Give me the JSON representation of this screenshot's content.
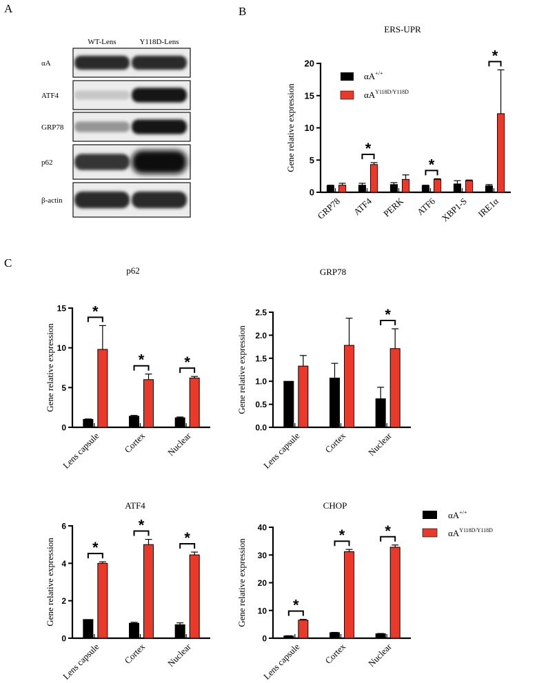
{
  "panels": {
    "a": "A",
    "b": "B",
    "c": "C"
  },
  "blot": {
    "lanes": [
      "WT-Lens",
      "Y118D-Lens"
    ],
    "rows": [
      {
        "label": "αA",
        "wt": 0.85,
        "mut": 0.85
      },
      {
        "label": "ATF4",
        "wt": 0.12,
        "mut": 0.95
      },
      {
        "label": "GRP78",
        "wt": 0.35,
        "mut": 0.95
      },
      {
        "label": "p62",
        "wt": 0.8,
        "mut": 1.0
      },
      {
        "label": "β-actin",
        "wt": 0.85,
        "mut": 0.85
      }
    ]
  },
  "legend": {
    "wt_base": "αA",
    "wt_sup": "+/+",
    "mut_base": "αA",
    "mut_sup": "Y118D/Y118D",
    "colors": {
      "wt": "#000000",
      "mut": "#e8392a"
    }
  },
  "sig_symbol": "*",
  "chart_data": [
    {
      "id": "ers-upr",
      "type": "bar",
      "title": "ERS-UPR",
      "ylabel": "Gene relative expression",
      "ylim": [
        0,
        20
      ],
      "yticks": [
        0,
        5,
        10,
        15,
        20
      ],
      "categories": [
        "GRP78",
        "ATF4",
        "PERK",
        "ATF6",
        "XBP1-S",
        "IRE1α"
      ],
      "series": [
        {
          "name": "αA +/+",
          "values": [
            1.0,
            1.1,
            1.2,
            1.0,
            1.3,
            1.0
          ],
          "errors": [
            0.1,
            0.3,
            0.3,
            0.1,
            0.5,
            0.2
          ]
        },
        {
          "name": "αA Y118D/Y118D",
          "values": [
            1.1,
            4.3,
            2.0,
            2.0,
            1.8,
            12.2
          ],
          "errors": [
            0.3,
            0.3,
            0.7,
            0.1,
            0.1,
            6.8
          ]
        }
      ],
      "significant": [
        false,
        true,
        false,
        true,
        false,
        true
      ]
    },
    {
      "id": "p62",
      "type": "bar",
      "title": "p62",
      "ylabel": "Gene relative expression",
      "ylim": [
        0,
        15
      ],
      "yticks": [
        0,
        5,
        10,
        15
      ],
      "categories": [
        "Lens capsule",
        "Cortex",
        "Nuclear"
      ],
      "series": [
        {
          "name": "αA +/+",
          "values": [
            1.0,
            1.4,
            1.2
          ],
          "errors": [
            0.05,
            0.1,
            0.1
          ]
        },
        {
          "name": "αA Y118D/Y118D",
          "values": [
            9.8,
            6.0,
            6.2
          ],
          "errors": [
            3.0,
            0.7,
            0.2
          ]
        }
      ],
      "significant": [
        true,
        true,
        true
      ]
    },
    {
      "id": "grp78",
      "type": "bar",
      "title": "GRP78",
      "ylabel": "Gene relative expression",
      "ylim": [
        0,
        2.5
      ],
      "yticks": [
        "0.0",
        "0.5",
        "1.0",
        "1.5",
        "2.0",
        "2.5"
      ],
      "categories": [
        "Lens capsule",
        "Cortex",
        "Nuclear"
      ],
      "series": [
        {
          "name": "αA +/+",
          "values": [
            1.0,
            1.07,
            0.62
          ],
          "errors": [
            0.0,
            0.32,
            0.25
          ]
        },
        {
          "name": "αA Y118D/Y118D",
          "values": [
            1.33,
            1.78,
            1.71
          ],
          "errors": [
            0.23,
            0.59,
            0.43
          ]
        }
      ],
      "significant": [
        false,
        false,
        true
      ]
    },
    {
      "id": "atf4",
      "type": "bar",
      "title": "ATF4",
      "ylabel": "Gene relative expression",
      "ylim": [
        0,
        6
      ],
      "yticks": [
        0,
        2,
        4,
        6
      ],
      "categories": [
        "Lens capsule",
        "Cortex",
        "Nuclear"
      ],
      "series": [
        {
          "name": "αA +/+",
          "values": [
            1.0,
            0.8,
            0.72
          ],
          "errors": [
            0.0,
            0.05,
            0.1
          ]
        },
        {
          "name": "αA Y118D/Y118D",
          "values": [
            4.0,
            5.0,
            4.45
          ],
          "errors": [
            0.08,
            0.28,
            0.15
          ]
        }
      ],
      "significant": [
        true,
        true,
        true
      ]
    },
    {
      "id": "chop",
      "type": "bar",
      "title": "CHOP",
      "ylabel": "Gene relative expression",
      "ylim": [
        0,
        40
      ],
      "yticks": [
        0,
        10,
        20,
        30,
        40
      ],
      "categories": [
        "Lens capsule",
        "Cortex",
        "Nuclear"
      ],
      "series": [
        {
          "name": "αA +/+",
          "values": [
            0.8,
            2.0,
            1.6
          ],
          "errors": [
            0.1,
            0.1,
            0.1
          ]
        },
        {
          "name": "αA Y118D/Y118D",
          "values": [
            6.5,
            31.2,
            32.8
          ],
          "errors": [
            0.3,
            0.8,
            0.8
          ]
        }
      ],
      "significant": [
        true,
        true,
        true
      ]
    }
  ]
}
